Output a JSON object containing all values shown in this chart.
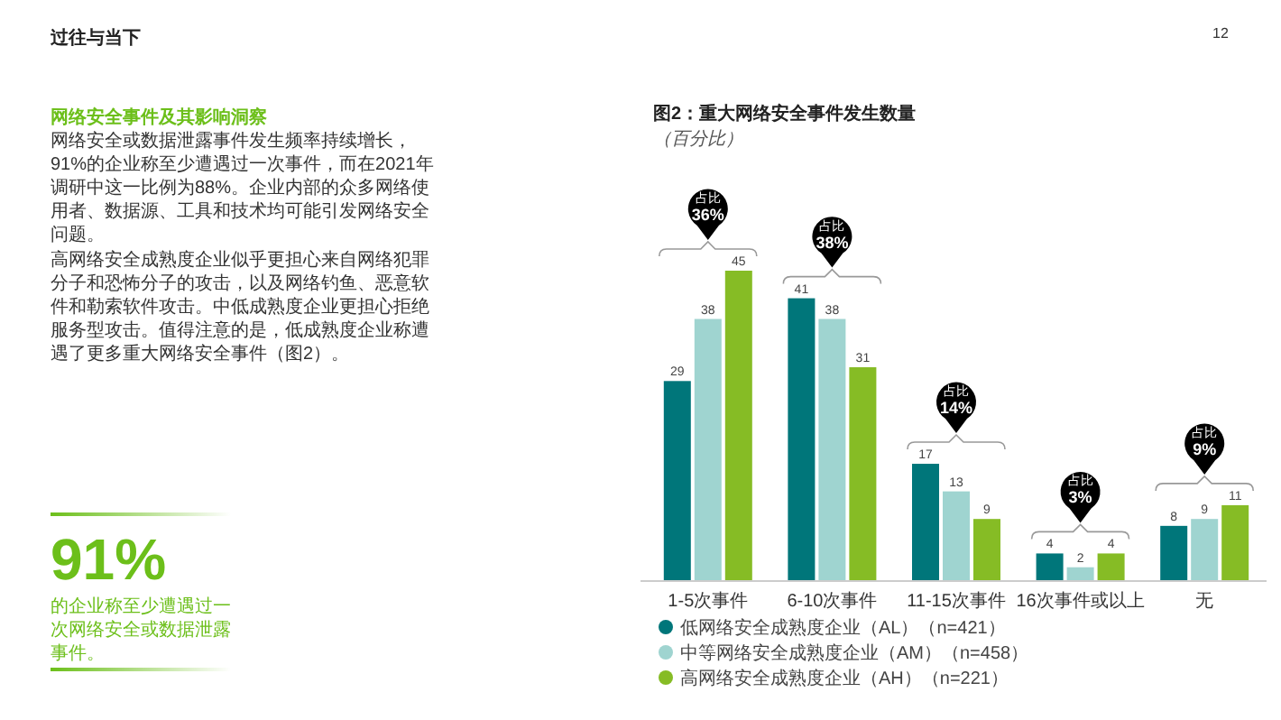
{
  "chart_data": {
    "type": "bar",
    "title": "图2：重大网络安全事件发生数量",
    "subtitle": "（百分比）",
    "categories": [
      "1-5次事件",
      "6-10次事件",
      "11-15次事件",
      "16次事件或以上",
      "无"
    ],
    "series": [
      {
        "name": "低网络安全成熟度企业（AL）（n=421）",
        "color": "#00767a",
        "values": [
          29,
          41,
          17,
          4,
          8
        ]
      },
      {
        "name": "中等网络安全成熟度企业（AM）（n=458）",
        "color": "#9fd4d0",
        "values": [
          38,
          38,
          13,
          2,
          9
        ]
      },
      {
        "name": "高网络安全成熟度企业（AH）（n=221）",
        "color": "#86bc25",
        "values": [
          45,
          31,
          9,
          4,
          11
        ]
      }
    ],
    "data_labels": true,
    "legend": "bottom",
    "grid": false,
    "annotations": [
      "占比\n36%",
      "占比\n38%",
      "占比\n14%",
      "占比\n3%",
      "占比\n9%",
      "过往与当下",
      "12",
      "网络安全事件及其影响洞察",
      "网络安全或数据泄露事件发生频率持续增长，91%的企业称至少遭遇过一次事件，而在2021年调研中这一比例为88%。企业内部的众多网络使用者、数据源、工具和技术均可能引发网络安全问题。",
      "高网络安全成熟度企业似乎更担心来自网络犯罪分子和恐怖分子的攻击，以及网络钓鱼、恶意软件和勒索软件攻击。中低成熟度企业更担心拒绝服务型攻击。值得注意的是，低成熟度企业称遭遇了更多重大网络安全事件（图2）。",
      "91%",
      "的企业称至少遭遇过一次网络安全或数据泄露事件。"
    ]
  }
}
